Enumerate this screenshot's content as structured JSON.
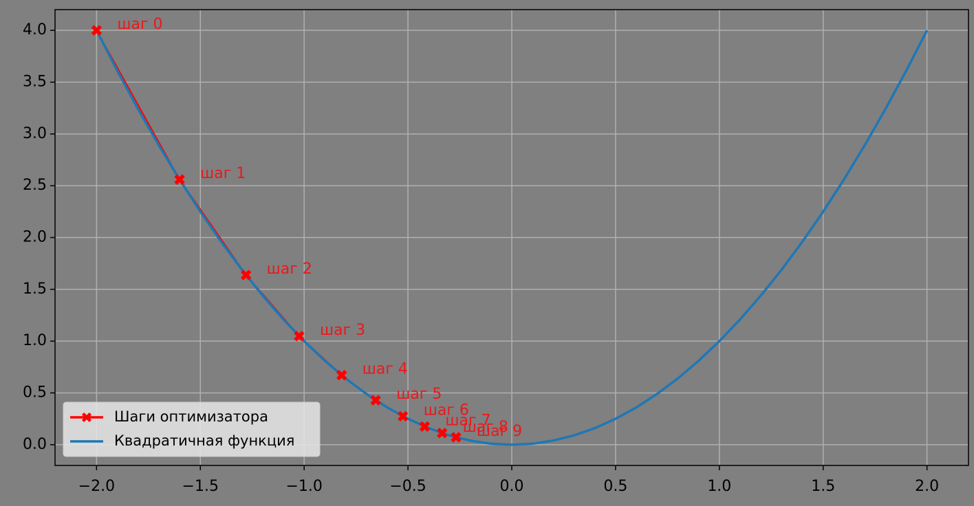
{
  "chart_data": {
    "type": "line",
    "xlim": [
      -2.2,
      2.2
    ],
    "ylim": [
      -0.2,
      4.2
    ],
    "xticks": [
      {
        "value": -2.0,
        "label": "−2.0"
      },
      {
        "value": -1.5,
        "label": "−1.5"
      },
      {
        "value": -1.0,
        "label": "−1.0"
      },
      {
        "value": -0.5,
        "label": "−0.5"
      },
      {
        "value": 0,
        "label": "0.0"
      },
      {
        "value": 0.5,
        "label": "0.5"
      },
      {
        "value": 1.0,
        "label": "1.0"
      },
      {
        "value": 1.5,
        "label": "1.5"
      },
      {
        "value": 2.0,
        "label": "2.0"
      }
    ],
    "yticks": [
      {
        "value": 0,
        "label": "0.0"
      },
      {
        "value": 0.5,
        "label": "0.5"
      },
      {
        "value": 1.0,
        "label": "1.0"
      },
      {
        "value": 1.5,
        "label": "1.5"
      },
      {
        "value": 2.0,
        "label": "2.0"
      },
      {
        "value": 2.5,
        "label": "2.5"
      },
      {
        "value": 3.0,
        "label": "3.0"
      },
      {
        "value": 3.5,
        "label": "3.5"
      },
      {
        "value": 4.0,
        "label": "4.0"
      }
    ],
    "grid": true,
    "legend": "lower left",
    "series": [
      {
        "name": "Шаги оптимизатора",
        "color": "#ff0000",
        "marker": "X",
        "x": [
          -2,
          -1.6,
          -1.28,
          -1.024,
          -0.8192,
          -0.65536,
          -0.524288,
          -0.4194304,
          -0.33554432,
          -0.268435456
        ],
        "values": [
          4,
          2.56,
          1.6384,
          1.048576,
          0.67108864,
          0.4294967,
          0.27487791,
          0.17592186,
          0.11258999,
          0.07205759
        ],
        "point_labels": [
          "шаг 0",
          "шаг 1",
          "шаг 2",
          "шаг 3",
          "шаг 4",
          "шаг 5",
          "шаг 6",
          "шаг 7",
          "шаг 8",
          "шаг 9"
        ]
      },
      {
        "name": "Квадратичная функция",
        "color": "#1f77b4",
        "x": [
          -2,
          -1.9,
          -1.8,
          -1.7,
          -1.6,
          -1.5,
          -1.4,
          -1.3,
          -1.2,
          -1.1,
          -1,
          -0.9,
          -0.8,
          -0.7,
          -0.6,
          -0.5,
          -0.4,
          -0.3,
          -0.2,
          -0.1,
          0,
          0.1,
          0.2,
          0.3,
          0.4,
          0.5,
          0.6,
          0.7,
          0.8,
          0.9,
          1,
          1.1,
          1.2,
          1.3,
          1.4,
          1.5,
          1.6,
          1.7,
          1.8,
          1.9,
          2
        ],
        "values": [
          4,
          3.61,
          3.24,
          2.89,
          2.56,
          2.25,
          1.96,
          1.69,
          1.44,
          1.21,
          1,
          0.81,
          0.64,
          0.49,
          0.36,
          0.25,
          0.16,
          0.09,
          0.04,
          0.01,
          0,
          0.01,
          0.04,
          0.09,
          0.16,
          0.25,
          0.36,
          0.49,
          0.64,
          0.81,
          1,
          1.21,
          1.44,
          1.69,
          1.96,
          2.25,
          2.56,
          2.89,
          3.24,
          3.61,
          4
        ]
      }
    ]
  }
}
